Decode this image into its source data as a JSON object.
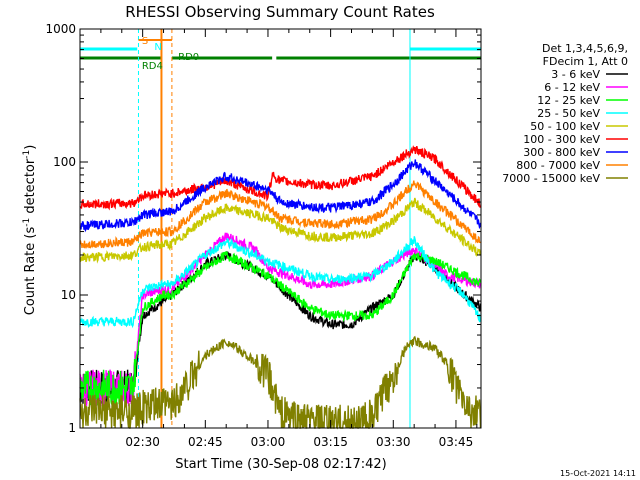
{
  "chart_data": {
    "type": "line",
    "title": "RHESSI Observing Summary Count Rates",
    "xlabel": "Start Time (30-Sep-08 02:17:42)",
    "ylabel_main": "Count Rate (s",
    "ylabel_sup1": "-1",
    "ylabel_mid": " detector",
    "ylabel_sup2": "-1",
    "ylabel_end": ")",
    "y_scale": "log",
    "ylim": [
      1,
      1000
    ],
    "xlim_minutes": [
      0,
      96
    ],
    "y_ticks": [
      {
        "value": 1,
        "label": "1"
      },
      {
        "value": 10,
        "label": "10"
      },
      {
        "value": 100,
        "label": "100"
      },
      {
        "value": 1000,
        "label": "1000"
      }
    ],
    "x_ticks": [
      {
        "minute": 15,
        "label": "02:30"
      },
      {
        "minute": 30,
        "label": "02:45"
      },
      {
        "minute": 45,
        "label": "03:00"
      },
      {
        "minute": 60,
        "label": "03:15"
      },
      {
        "minute": 75,
        "label": "03:30"
      },
      {
        "minute": 90,
        "label": "03:45"
      }
    ],
    "legend_position": "right",
    "legend_header": [
      "Det 1,3,4,5,6,9,",
      "FDecim 1, Att 0"
    ],
    "series": [
      {
        "name": "3 - 6 keV",
        "color": "#000000",
        "key_minutes": [
          12.7,
          15,
          20,
          22,
          30,
          35,
          45,
          55,
          60,
          65,
          70,
          75,
          80,
          85,
          92,
          96
        ],
        "key_values": [
          2,
          7,
          9,
          10,
          17,
          20,
          14,
          7,
          6,
          6,
          8,
          10,
          20,
          16,
          10,
          8
        ]
      },
      {
        "name": "6 - 12 keV",
        "color": "#ff00ff",
        "key_minutes": [
          12.7,
          15,
          20,
          22,
          30,
          35,
          42,
          45,
          50,
          55,
          60,
          70,
          75,
          80,
          88,
          96
        ],
        "key_values": [
          2,
          10,
          11,
          11,
          20,
          28,
          22,
          16,
          14,
          12,
          12,
          14,
          18,
          22,
          14,
          12
        ]
      },
      {
        "name": "12 - 25 keV",
        "color": "#00ff00",
        "key_minutes": [
          12.7,
          15,
          20,
          22,
          30,
          35,
          45,
          55,
          60,
          70,
          75,
          80,
          85,
          96
        ],
        "key_values": [
          2,
          8,
          10,
          10,
          16,
          20,
          14,
          8,
          7,
          7,
          10,
          20,
          18,
          12
        ]
      },
      {
        "name": "25 - 50 keV",
        "color": "#00ffff",
        "key_minutes": [
          0,
          12.7,
          15,
          20,
          22,
          30,
          35,
          45,
          55,
          60,
          70,
          75,
          80,
          85,
          92,
          96
        ],
        "key_values": [
          6.3,
          6.3,
          11,
          12,
          12,
          20,
          25,
          18,
          14,
          13,
          14,
          18,
          26,
          15,
          10,
          6.5
        ]
      },
      {
        "name": "50 - 100 keV",
        "color": "#c8c800",
        "key_minutes": [
          0,
          12.7,
          15,
          20,
          22,
          30,
          35,
          45,
          48,
          55,
          60,
          70,
          75,
          80,
          85,
          96
        ],
        "key_values": [
          19,
          20,
          23,
          24,
          24,
          38,
          45,
          38,
          32,
          28,
          27,
          29,
          36,
          50,
          38,
          20
        ]
      },
      {
        "name": "100 - 300 keV",
        "color": "#ff0000",
        "key_minutes": [
          0,
          12.7,
          15,
          20,
          22,
          30,
          35,
          45,
          46,
          48,
          55,
          60,
          70,
          75,
          80,
          85,
          96
        ],
        "key_values": [
          48,
          49,
          56,
          58,
          58,
          65,
          72,
          55,
          80,
          72,
          68,
          66,
          78,
          100,
          125,
          105,
          48
        ]
      },
      {
        "name": "300 - 800 keV",
        "color": "#0000ff",
        "key_minutes": [
          0,
          12.7,
          15,
          20,
          22,
          30,
          35,
          45,
          48,
          55,
          60,
          70,
          75,
          80,
          85,
          96
        ],
        "key_values": [
          33,
          35,
          40,
          42,
          42,
          65,
          78,
          62,
          50,
          46,
          45,
          50,
          68,
          100,
          72,
          34
        ]
      },
      {
        "name": "800 - 7000 keV",
        "color": "#ff8000",
        "key_minutes": [
          0,
          12.7,
          15,
          20,
          22,
          30,
          35,
          45,
          48,
          55,
          60,
          70,
          75,
          80,
          85,
          96
        ],
        "key_values": [
          24,
          25,
          29,
          30,
          30,
          50,
          58,
          46,
          38,
          35,
          34,
          37,
          48,
          70,
          50,
          25
        ]
      },
      {
        "name": "7000 - 15000 keV",
        "color": "#808000",
        "key_minutes": [
          0,
          12.7,
          15,
          20,
          22,
          25,
          30,
          35,
          40,
          45,
          48,
          55,
          65,
          70,
          75,
          78,
          80,
          85,
          88,
          92,
          96
        ],
        "key_values": [
          1.3,
          1.3,
          1.4,
          1.5,
          1.5,
          2,
          3.5,
          4.5,
          3.5,
          2.5,
          1.3,
          1.1,
          1.1,
          1.2,
          2.5,
          4,
          4.5,
          4,
          3,
          1.5,
          1.2
        ]
      }
    ],
    "annotations": {
      "s_label": "S",
      "n_label": "N",
      "rd0_label": "RD0",
      "rd4_label": "RD4",
      "saa_minutes": [
        [
          0,
          13.7
        ],
        [
          79,
          96
        ]
      ],
      "rd0_minutes": [
        [
          22,
          46
        ],
        [
          47,
          96
        ]
      ],
      "rd4_minutes": [
        [
          0,
          19.5
        ]
      ],
      "dashed_cyan_minutes": [
        14,
        19.5,
        79,
        96
      ],
      "dashed_orange_minutes": [
        22
      ],
      "solid_orange_minutes": [
        19.5
      ],
      "solid_cyan_minutes": [
        79
      ]
    },
    "footer_date": "15-Oct-2021 14:11"
  }
}
